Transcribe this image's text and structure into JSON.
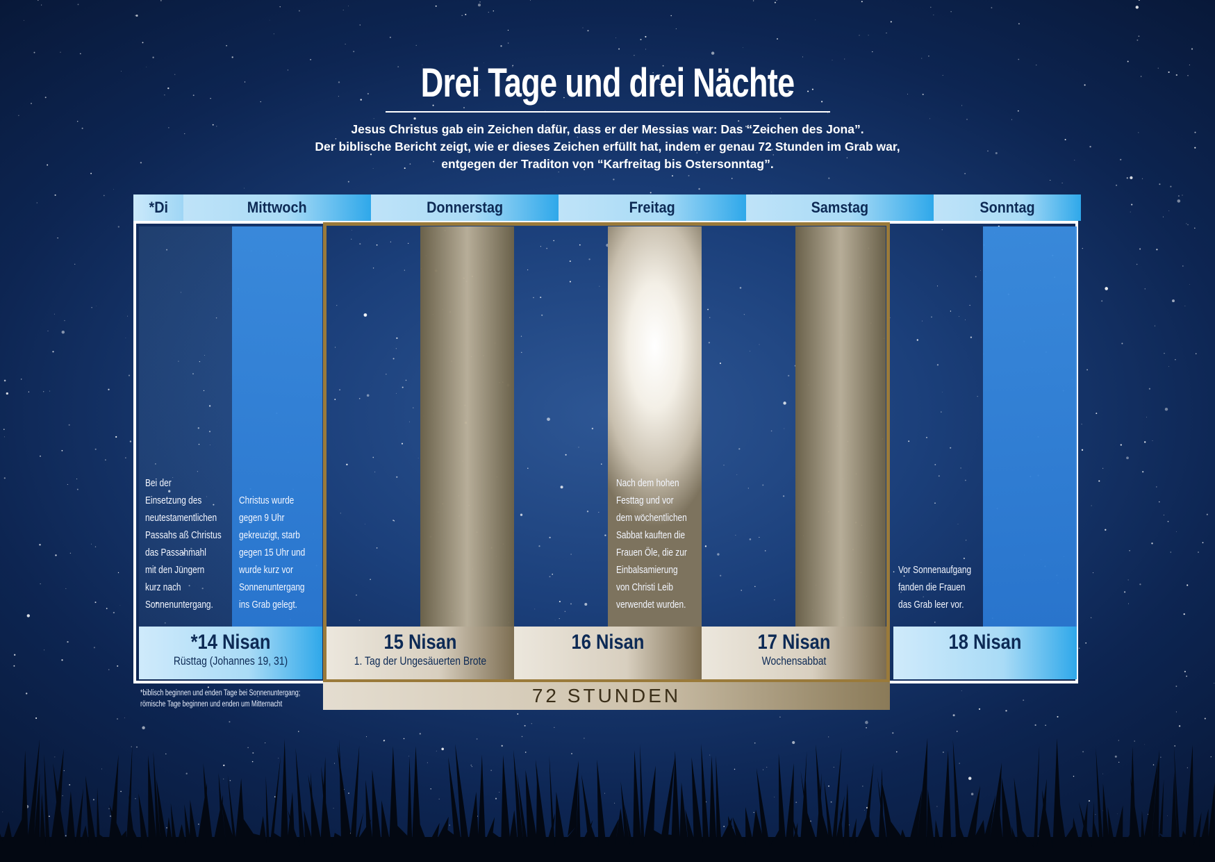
{
  "title": "Drei Tage und drei Nächte",
  "subtitle": [
    "Jesus Christus gab ein Zeichen dafür, dass er der Messias war: Das “Zeichen des Jona”.",
    "Der biblische Bericht zeigt, wie er dieses Zeichen erfüllt hat, indem er genau 72 Stunden im Grab war,",
    "entgegen der Traditon von “Karfreitag bis Ostersonntag”."
  ],
  "days": [
    "*Di",
    "Mittwoch",
    "Donnerstag",
    "Freitag",
    "Samstag",
    "Sonntag"
  ],
  "notes": {
    "tuesday": [
      "Bei der",
      "Einsetzung des",
      "neutestamentlichen",
      "Passahs aß Christus",
      "das Passahmahl",
      "mit den Jüngern",
      "kurz nach",
      "Sonnenuntergang."
    ],
    "wednesday": [
      "Christus wurde",
      "gegen 9 Uhr",
      "gekreuzigt, starb",
      "gegen 15 Uhr und",
      "wurde kurz vor",
      "Sonnenuntergang",
      "ins Grab gelegt."
    ],
    "friday": [
      "Nach dem hohen",
      "Festtag und vor",
      "dem wöchentlichen",
      "Sabbat kauften die",
      "Frauen Öle, die zur",
      "Einbalsamierung",
      "von Christi Leib",
      "verwendet wurden."
    ],
    "sunday": [
      "Vor Sonnenaufgang",
      "fanden die Frauen",
      "das Grab leer vor."
    ]
  },
  "dates": [
    {
      "main": "*14 Nisan",
      "sub": "Rüsttag (Johannes 19, 31)"
    },
    {
      "main": "15 Nisan",
      "sub": "1. Tag der Ungesäuerten Brote"
    },
    {
      "main": "16 Nisan",
      "sub": ""
    },
    {
      "main": "17 Nisan",
      "sub": "Wochensabbat"
    },
    {
      "main": "18 Nisan",
      "sub": ""
    }
  ],
  "duration_label": "72 STUNDEN",
  "footnote": [
    "*biblisch beginnen und enden Tage bei Sonnenuntergang;",
    "römische Tage beginnen und enden um Mitternacht"
  ],
  "colors": {
    "sky_dark": "#0d2552",
    "day_bar_blue": "#7fd0f7",
    "night_column_blue": "#2a78d2",
    "gold_frame": "#9a7a3a",
    "text_navy": "#0d2a55"
  }
}
